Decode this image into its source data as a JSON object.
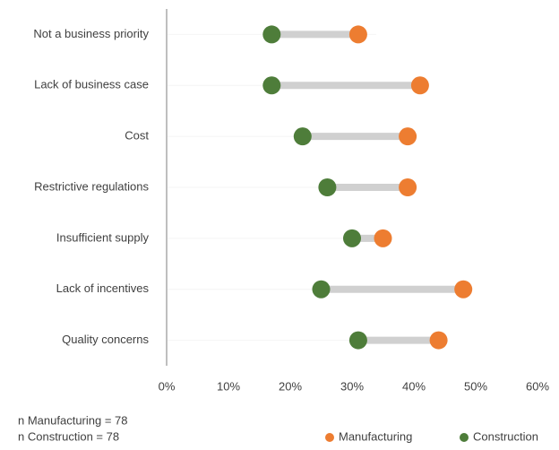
{
  "chart_data": {
    "type": "dumbbell",
    "categories": [
      "Not a business priority",
      "Lack of business case",
      "Cost",
      "Restrictive regulations",
      "Insufficient supply",
      "Lack of incentives",
      "Quality concerns"
    ],
    "series": [
      {
        "name": "Manufacturing",
        "color": "#ed7d31",
        "values": [
          31,
          41,
          39,
          39,
          35,
          48,
          44
        ]
      },
      {
        "name": "Construction",
        "color": "#4e7d3a",
        "values": [
          17,
          17,
          22,
          26,
          30,
          25,
          31
        ]
      }
    ],
    "connector_color": "#d0d0d0",
    "xlim": [
      0,
      60
    ],
    "xticks": [
      {
        "value": 0,
        "label": "0%"
      },
      {
        "value": 10,
        "label": "10%"
      },
      {
        "value": 20,
        "label": "20%"
      },
      {
        "value": 30,
        "label": "30%"
      },
      {
        "value": 40,
        "label": "40%"
      },
      {
        "value": 50,
        "label": "50%"
      },
      {
        "value": 60,
        "label": "60%"
      }
    ],
    "notes": [
      "n Manufacturing = 78",
      "n Construction = 78"
    ],
    "legend": "bottom-right"
  }
}
